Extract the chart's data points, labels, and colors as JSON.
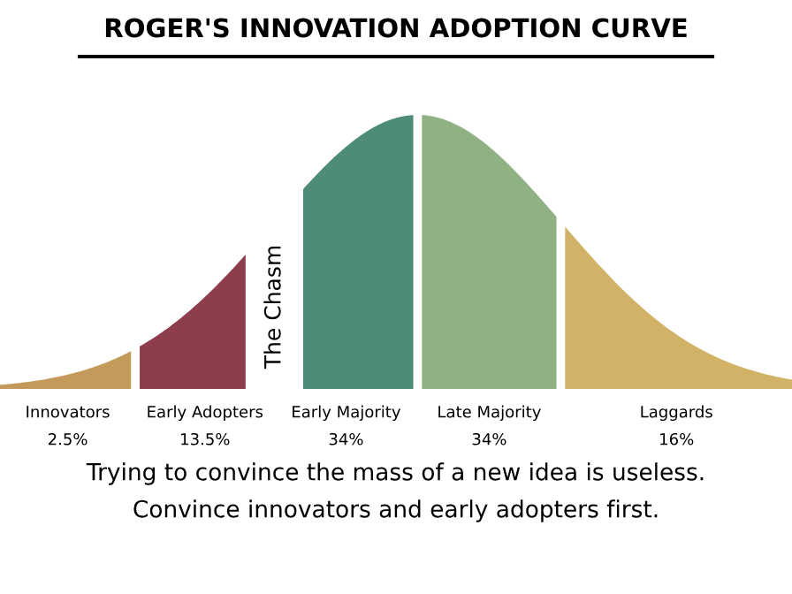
{
  "chart_data": {
    "type": "other",
    "title": "ROGER'S INNOVATION ADOPTION CURVE",
    "categories": [
      "Innovators",
      "Early Adopters",
      "Early Majority",
      "Late Majority",
      "Laggards"
    ],
    "values": [
      2.5,
      13.5,
      34,
      34,
      16
    ],
    "value_labels": [
      "2.5%",
      "13.5%",
      "34%",
      "34%",
      "16%"
    ],
    "colors": [
      "#c49a5a",
      "#8e3d4c",
      "#4f8c78",
      "#8fb184",
      "#d2b266"
    ],
    "annotations": [
      "The Chasm",
      "Trying to convince the mass of a new idea is useless.",
      "Convince innovators and early adopters first."
    ]
  }
}
